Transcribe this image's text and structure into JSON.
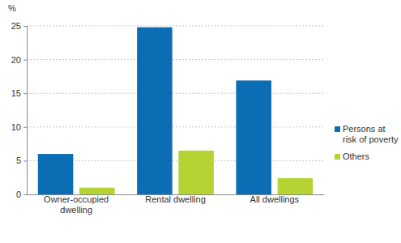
{
  "chart_data": {
    "type": "bar",
    "y_label": "%",
    "categories": [
      "Owner-occupied dwelling",
      "Rental dwelling",
      "All dwellings"
    ],
    "series": [
      {
        "name": "Persons at risk of poverty",
        "color": "#0b6db4",
        "values": [
          6.0,
          24.8,
          16.9
        ]
      },
      {
        "name": "Others",
        "color": "#b5d333",
        "values": [
          1.0,
          6.5,
          2.4
        ]
      }
    ],
    "ylim": [
      0,
      25
    ],
    "yticks": [
      0,
      5,
      10,
      15,
      20,
      25
    ],
    "grid": true,
    "legend": "right"
  }
}
